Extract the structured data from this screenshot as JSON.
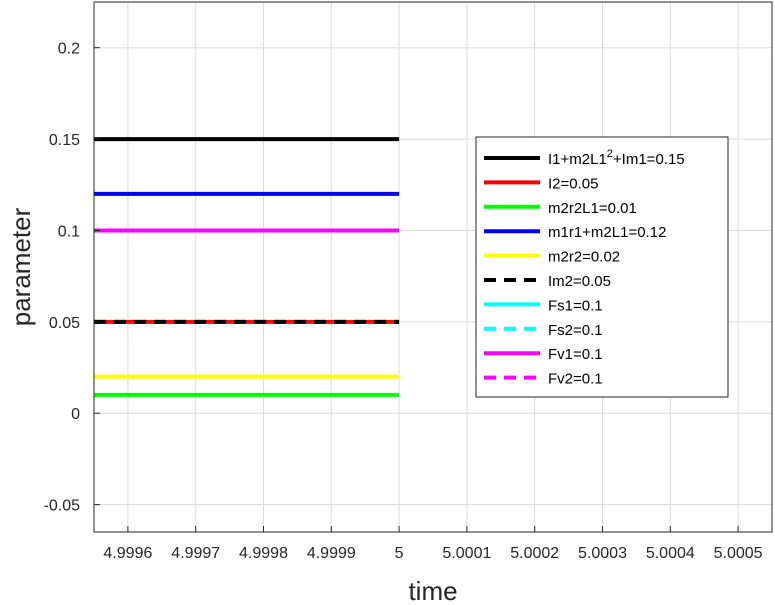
{
  "chart_data": {
    "type": "line",
    "title": "",
    "xlabel": "time",
    "ylabel": "parameter",
    "xlim": [
      4.99955,
      5.00055
    ],
    "ylim": [
      -0.065,
      0.225
    ],
    "grid": true,
    "legend_position": "right",
    "xticks": [
      4.9996,
      4.9997,
      4.9998,
      4.9999,
      5,
      5.0001,
      5.0002,
      5.0003,
      5.0004,
      5.0005
    ],
    "xtick_labels": [
      "4.9996",
      "4.9997",
      "4.9998",
      "4.9999",
      "5",
      "5.0001",
      "5.0002",
      "5.0003",
      "5.0004",
      "5.0005"
    ],
    "yticks": [
      -0.05,
      0,
      0.05,
      0.1,
      0.15,
      0.2
    ],
    "ytick_labels": [
      "-0.05",
      "0",
      "0.05",
      "0.1",
      "0.15",
      "0.2"
    ],
    "x_range": [
      4.99955,
      5
    ],
    "series": [
      {
        "name": "I1+m2L1²+Im1=0.15",
        "label_main": "I1+m2L1",
        "label_sup": "2",
        "label_tail": "+Im1=0.15",
        "color": "#000000",
        "dash": "solid",
        "values": [
          0.15,
          0.15
        ]
      },
      {
        "name": "I2=0.05",
        "color": "#ff0000",
        "dash": "solid",
        "values": [
          0.05,
          0.05
        ]
      },
      {
        "name": "m2r2L1=0.01",
        "color": "#00ff00",
        "dash": "solid",
        "values": [
          0.01,
          0.01
        ]
      },
      {
        "name": "m1r1+m2L1=0.12",
        "color": "#0000ff",
        "dash": "solid",
        "values": [
          0.12,
          0.12
        ]
      },
      {
        "name": "m2r2=0.02",
        "color": "#ffff00",
        "dash": "solid",
        "values": [
          0.02,
          0.02
        ]
      },
      {
        "name": "Im2=0.05",
        "color": "#000000",
        "dash": "dashed",
        "values": [
          0.05,
          0.05
        ]
      },
      {
        "name": "Fs1=0.1",
        "color": "#00ffff",
        "dash": "solid",
        "values": [
          0.1,
          0.1
        ]
      },
      {
        "name": "Fs2=0.1",
        "color": "#00ffff",
        "dash": "dashed",
        "values": [
          0.1,
          0.1
        ]
      },
      {
        "name": "Fv1=0.1",
        "color": "#ff00ff",
        "dash": "solid",
        "values": [
          0.1,
          0.1
        ]
      },
      {
        "name": "Fv2=0.1",
        "color": "#ff00ff",
        "dash": "dashed",
        "values": [
          0.1,
          0.1
        ]
      }
    ]
  }
}
